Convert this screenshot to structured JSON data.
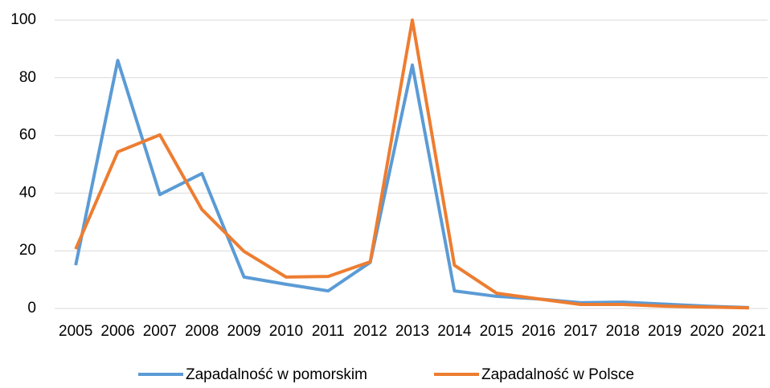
{
  "chart_data": {
    "type": "line",
    "categories": [
      "2005",
      "2006",
      "2007",
      "2008",
      "2009",
      "2010",
      "2011",
      "2012",
      "2013",
      "2014",
      "2015",
      "2016",
      "2017",
      "2018",
      "2019",
      "2020",
      "2021"
    ],
    "series": [
      {
        "name": "Zapadalność w pomorskim",
        "color": "#5b9bd5",
        "values": [
          15,
          86,
          39.5,
          46.8,
          10.9,
          8.4,
          6.1,
          16,
          84.4,
          6.1,
          4.2,
          3.3,
          2,
          2.2,
          1.5,
          0.8,
          0.3
        ]
      },
      {
        "name": "Zapadalność w Polsce",
        "color": "#ed7d31",
        "values": [
          20.6,
          54.3,
          60.2,
          34.3,
          19.8,
          10.9,
          11.1,
          16.2,
          100,
          15,
          5.3,
          3.3,
          1.4,
          1.4,
          0.8,
          0.5,
          0.2
        ]
      }
    ],
    "ylim": [
      0,
      100
    ],
    "yticks": [
      0,
      20,
      40,
      60,
      80,
      100
    ],
    "grid": true,
    "legend": "bottom"
  }
}
